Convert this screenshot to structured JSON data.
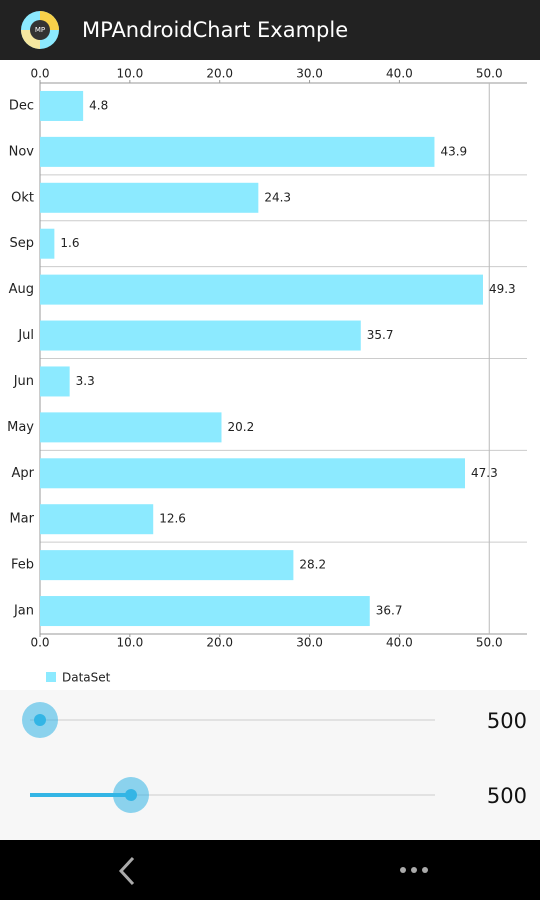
{
  "app_bar": {
    "title": "MPAndroidChart Example",
    "icon_label": "MP"
  },
  "chart_data": {
    "type": "hbar",
    "categories": [
      "Jan",
      "Feb",
      "Mar",
      "Apr",
      "May",
      "Jun",
      "Jul",
      "Aug",
      "Sep",
      "Okt",
      "Nov",
      "Dec"
    ],
    "series": [
      {
        "name": "DataSet",
        "color": "#8ceaff",
        "values": [
          36.7,
          28.2,
          12.6,
          47.3,
          20.2,
          3.3,
          35.7,
          49.3,
          1.6,
          24.3,
          43.9,
          4.8
        ]
      }
    ],
    "xlim": [
      0,
      54.2
    ],
    "xticks": [
      {
        "value": 0,
        "label": "0.0"
      },
      {
        "value": 10,
        "label": "10.0"
      },
      {
        "value": 20,
        "label": "20.0"
      },
      {
        "value": 30,
        "label": "30.0"
      },
      {
        "value": 40,
        "label": "40.0"
      },
      {
        "value": 50,
        "label": "50.0"
      }
    ],
    "legend": "bottom-left"
  },
  "sliders": [
    {
      "value": 500
    },
    {
      "value": 500
    }
  ]
}
